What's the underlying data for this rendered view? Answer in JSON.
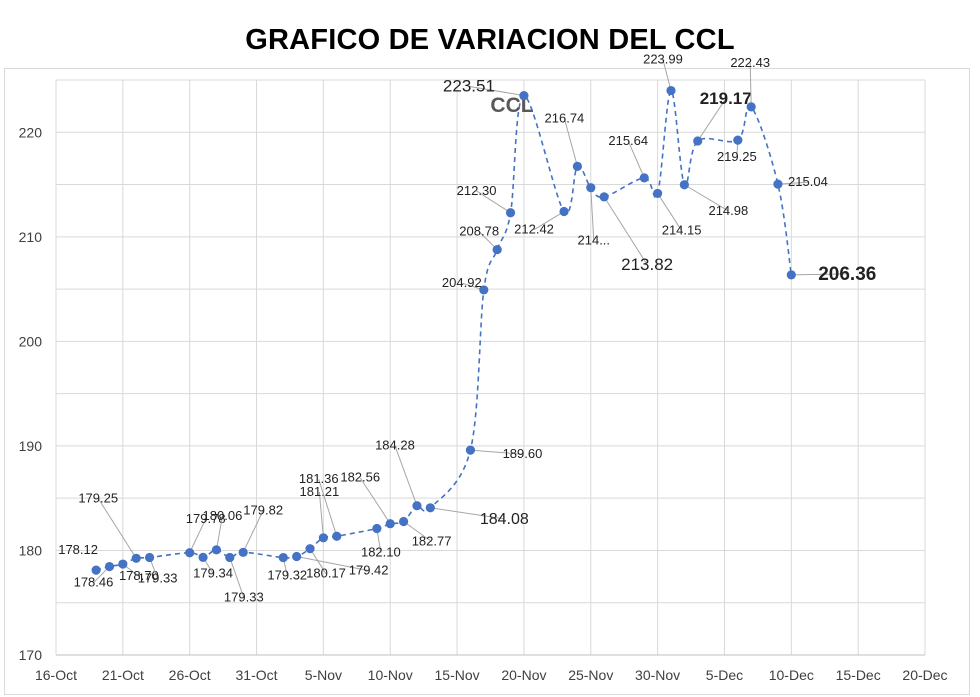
{
  "page_title": "GRAFICO DE VARIACION DEL CCL",
  "colors": {
    "series": "#4472c4",
    "grid": "#d9d9d9",
    "leader": "#a6a6a6",
    "title": "#595959"
  },
  "chart_data": {
    "type": "line",
    "title": "CCL",
    "line_style": "dashed",
    "grid": true,
    "legend": "none",
    "xlabel": "",
    "ylabel": "",
    "xlim": [
      "2020-10-16",
      "2020-12-20"
    ],
    "ylim": [
      170,
      225
    ],
    "x_tick_labels": [
      "16-Oct",
      "21-Oct",
      "26-Oct",
      "31-Oct",
      "5-Nov",
      "10-Nov",
      "15-Nov",
      "20-Nov",
      "25-Nov",
      "30-Nov",
      "5-Dec",
      "10-Dec",
      "15-Dec",
      "20-Dec"
    ],
    "y_tick_labels": [
      "170",
      "180",
      "190",
      "200",
      "210",
      "220"
    ],
    "series": [
      {
        "x": [
          "2020-10-19",
          "2020-10-20",
          "2020-10-21",
          "2020-10-22",
          "2020-10-23",
          "2020-10-26",
          "2020-10-27",
          "2020-10-28",
          "2020-10-29",
          "2020-10-30",
          "2020-11-02",
          "2020-11-03",
          "2020-11-04",
          "2020-11-05",
          "2020-11-06",
          "2020-11-09",
          "2020-11-10",
          "2020-11-11",
          "2020-11-12",
          "2020-11-13",
          "2020-11-16",
          "2020-11-17",
          "2020-11-18",
          "2020-11-19",
          "2020-11-20",
          "2020-11-23",
          "2020-11-24",
          "2020-11-25",
          "2020-11-26",
          "2020-11-29",
          "2020-11-30",
          "2020-12-01",
          "2020-12-02",
          "2020-12-03",
          "2020-12-06",
          "2020-12-07",
          "2020-12-09",
          "2020-12-10"
        ],
        "values": [
          178.12,
          178.46,
          178.7,
          179.25,
          179.33,
          179.78,
          179.34,
          180.06,
          179.33,
          179.82,
          179.32,
          179.42,
          180.17,
          181.21,
          181.36,
          182.1,
          182.56,
          182.77,
          184.28,
          184.08,
          189.6,
          204.92,
          208.78,
          212.3,
          223.51,
          212.42,
          216.74,
          214.7,
          213.82,
          215.64,
          214.15,
          223.99,
          214.98,
          219.17,
          219.25,
          222.43,
          215.04,
          206.36
        ]
      }
    ],
    "data_labels": [
      "178.12",
      "178.46",
      "178.70",
      "179.25",
      "179.33",
      "179.78",
      "179.34",
      "180.06",
      "179.33",
      "179.82",
      "179.32",
      "179.42",
      "180.17",
      "181.21",
      "181.36",
      "182.10",
      "182.56",
      "182.77",
      "184.28",
      "184.08",
      "189.60",
      "204.92",
      "208.78",
      "212.30",
      "223.51",
      "212.42",
      "216.74",
      "214...",
      "213.82",
      "215.64",
      "214.15",
      "223.99",
      "214.98",
      "219.17",
      "219.25",
      "222.43",
      "215.04",
      "206.36"
    ]
  }
}
